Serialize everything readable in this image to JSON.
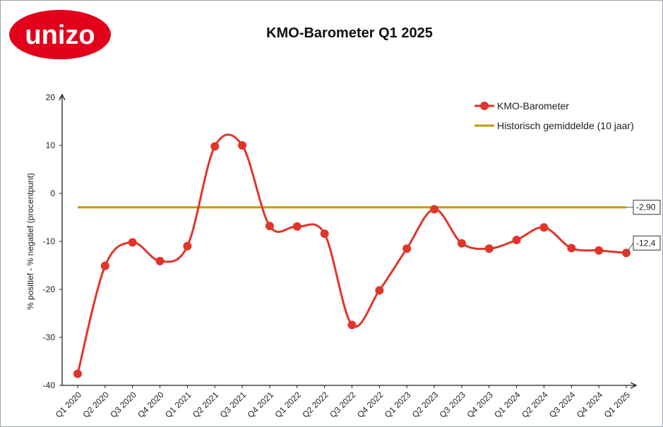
{
  "brand": {
    "logo_text": "unizo",
    "logo_color": "#e3001b"
  },
  "chart_data": {
    "type": "line",
    "title": "KMO-Barometer Q1 2025",
    "ylabel": "% positief - % negatief (procentpunt)",
    "xlabel": "",
    "ylim": [
      -40,
      20
    ],
    "yticks": [
      20,
      10,
      0,
      -10,
      -20,
      -30,
      -40
    ],
    "categories": [
      "Q1 2020",
      "Q2 2020",
      "Q3 2020",
      "Q4 2020",
      "Q1 2021",
      "Q2 2021",
      "Q3 2021",
      "Q4 2021",
      "Q1 2022",
      "Q2 2022",
      "Q3 2022",
      "Q4 2022",
      "Q1 2023",
      "Q2 2023",
      "Q3 2023",
      "Q4 2023",
      "Q1 2024",
      "Q2 2024",
      "Q3 2024",
      "Q4 2024",
      "Q1 2025"
    ],
    "series": [
      {
        "name": "KMO-Barometer",
        "color": "#e0352b",
        "values": [
          -37.6,
          -15.1,
          -10.2,
          -14.1,
          -11.0,
          9.8,
          10.0,
          -6.8,
          -6.9,
          -8.4,
          -27.4,
          -20.2,
          -11.5,
          -3.3,
          -10.4,
          -11.5,
          -9.7,
          -7.1,
          -11.4,
          -11.9,
          -12.4
        ]
      },
      {
        "name": "Historisch gemiddelde (10 jaar)",
        "color": "#c49a00",
        "values": [
          -2.9,
          -2.9,
          -2.9,
          -2.9,
          -2.9,
          -2.9,
          -2.9,
          -2.9,
          -2.9,
          -2.9,
          -2.9,
          -2.9,
          -2.9,
          -2.9,
          -2.9,
          -2.9,
          -2.9,
          -2.9,
          -2.9,
          -2.9,
          -2.9
        ]
      }
    ],
    "callouts": [
      {
        "series": 1,
        "label": "-2,90"
      },
      {
        "series": 0,
        "label": "-12,4"
      }
    ],
    "legend": "top-right",
    "grid": false
  }
}
